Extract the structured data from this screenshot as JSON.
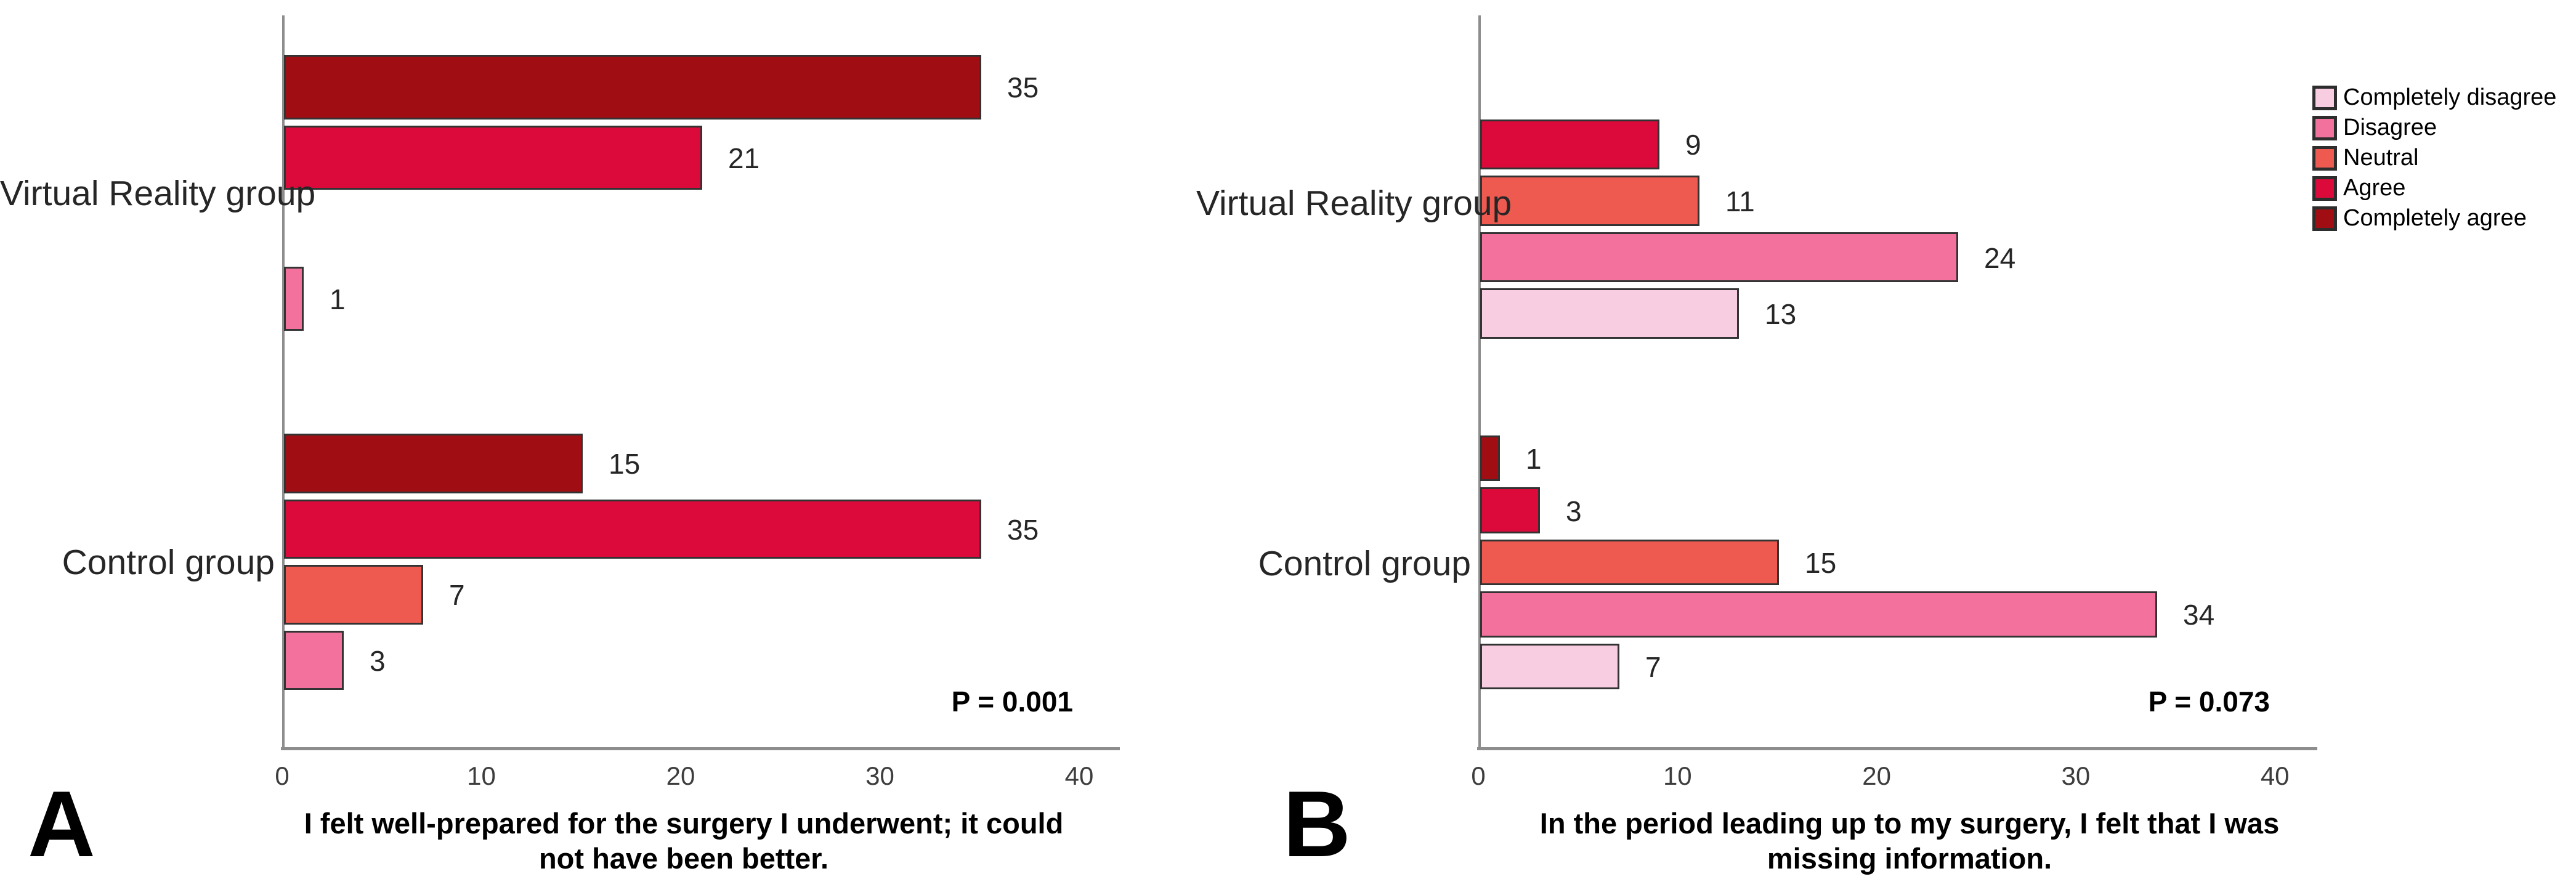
{
  "figure": {
    "letters": [
      "A",
      "B"
    ],
    "legend": {
      "entries": [
        {
          "label": "Completely disagree",
          "color": "#F8CCE1"
        },
        {
          "label": "Disagree",
          "color": "#F2719D"
        },
        {
          "label": "Neutral",
          "color": "#EE5A50"
        },
        {
          "label": "Agree",
          "color": "#DB0A3A"
        },
        {
          "label": "Completely agree",
          "color": "#A00E13"
        }
      ]
    },
    "colors": {
      "axis": "#8d8d8d",
      "bar_border": "#333333"
    }
  },
  "chart_data": [
    {
      "panel": "A",
      "type": "bar",
      "orientation": "horizontal",
      "title": "I felt well-prepared for the surgery I underwent; it could not have been better.",
      "title_lines": [
        "I felt well-prepared for the surgery I underwent; it could",
        "not have been better."
      ],
      "p_label": "P = 0.001",
      "xlim": [
        0,
        42
      ],
      "xticks": [
        0,
        10,
        20,
        30,
        40
      ],
      "grid": false,
      "value_labels_shown": true,
      "category_order_top_to_bottom": [
        "Completely agree",
        "Agree",
        "Neutral",
        "Disagree"
      ],
      "groups": [
        {
          "label": "Virtual Reality group",
          "bars": [
            {
              "category": "Completely agree",
              "value": 35
            },
            {
              "category": "Agree",
              "value": 21
            },
            {
              "category": "Neutral",
              "value": 0
            },
            {
              "category": "Disagree",
              "value": 1
            }
          ]
        },
        {
          "label": "Control group",
          "bars": [
            {
              "category": "Completely agree",
              "value": 15
            },
            {
              "category": "Agree",
              "value": 35
            },
            {
              "category": "Neutral",
              "value": 7
            },
            {
              "category": "Disagree",
              "value": 3
            }
          ]
        }
      ]
    },
    {
      "panel": "B",
      "type": "bar",
      "orientation": "horizontal",
      "title": "In the period leading up to my surgery, I felt that I was missing information.",
      "title_lines": [
        "In the period leading up to my surgery, I felt that I was",
        "missing information."
      ],
      "p_label": "P = 0.073",
      "xlim": [
        0,
        42
      ],
      "xticks": [
        0,
        10,
        20,
        30,
        40
      ],
      "grid": false,
      "value_labels_shown": true,
      "category_order_top_to_bottom": [
        "Completely agree",
        "Agree",
        "Neutral",
        "Disagree",
        "Completely disagree"
      ],
      "groups": [
        {
          "label": "Virtual Reality group",
          "bars": [
            {
              "category": "Completely agree",
              "value": 0
            },
            {
              "category": "Agree",
              "value": 9
            },
            {
              "category": "Neutral",
              "value": 11
            },
            {
              "category": "Disagree",
              "value": 24
            },
            {
              "category": "Completely disagree",
              "value": 13
            }
          ]
        },
        {
          "label": "Control group",
          "bars": [
            {
              "category": "Completely agree",
              "value": 1
            },
            {
              "category": "Agree",
              "value": 3
            },
            {
              "category": "Neutral",
              "value": 15
            },
            {
              "category": "Disagree",
              "value": 34
            },
            {
              "category": "Completely disagree",
              "value": 7
            }
          ]
        }
      ]
    }
  ]
}
